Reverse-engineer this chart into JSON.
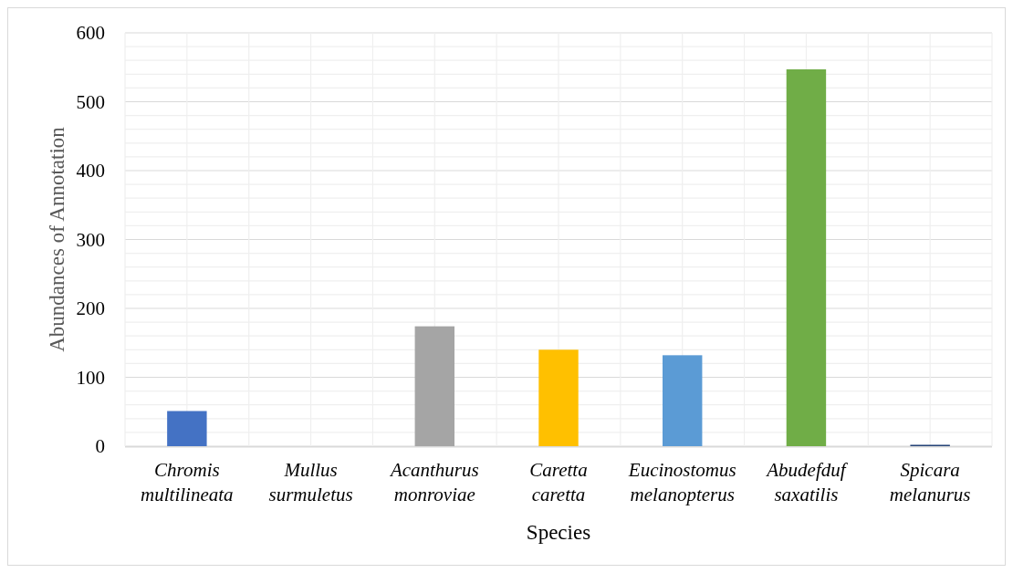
{
  "chart_data": {
    "type": "bar",
    "xlabel": "Species",
    "ylabel": "Abundances of Annotation",
    "categories": [
      "Chromis multilineata",
      "Mullus surmuletus",
      "Acanthurus monroviae",
      "Caretta caretta",
      "Eucinostomus melanopterus",
      "Abudefduf saxatilis",
      "Spicara melanurus"
    ],
    "values": [
      51,
      0,
      174,
      140,
      132,
      547,
      2
    ],
    "colors": [
      "#4472c4",
      "#ed7d31",
      "#a5a5a5",
      "#ffc000",
      "#5b9bd5",
      "#70ad47",
      "#264478"
    ],
    "ylim": [
      0,
      600
    ],
    "yticks": [
      0,
      {
        "value": 20,
        "label": null
      },
      {
        "value": 40,
        "label": null
      },
      {
        "value": 60,
        "label": null
      },
      {
        "value": 80,
        "label": null
      },
      100,
      {
        "value": 120,
        "label": null
      },
      {
        "value": 140,
        "label": null
      },
      {
        "value": 160,
        "label": null
      },
      {
        "value": 180,
        "label": null
      },
      200,
      {
        "value": 220,
        "label": null
      },
      {
        "value": 240,
        "label": null
      },
      {
        "value": 260,
        "label": null
      },
      {
        "value": 280,
        "label": null
      },
      300,
      {
        "value": 320,
        "label": null
      },
      {
        "value": 340,
        "label": null
      },
      {
        "value": 360,
        "label": null
      },
      {
        "value": 380,
        "label": null
      },
      400,
      {
        "value": 420,
        "label": null
      },
      {
        "value": 440,
        "label": null
      },
      {
        "value": 460,
        "label": null
      },
      {
        "value": 480,
        "label": null
      },
      500,
      {
        "value": 520,
        "label": null
      },
      {
        "value": 540,
        "label": null
      },
      {
        "value": 560,
        "label": null
      },
      {
        "value": 580,
        "label": null
      },
      600
    ],
    "grid": true
  }
}
